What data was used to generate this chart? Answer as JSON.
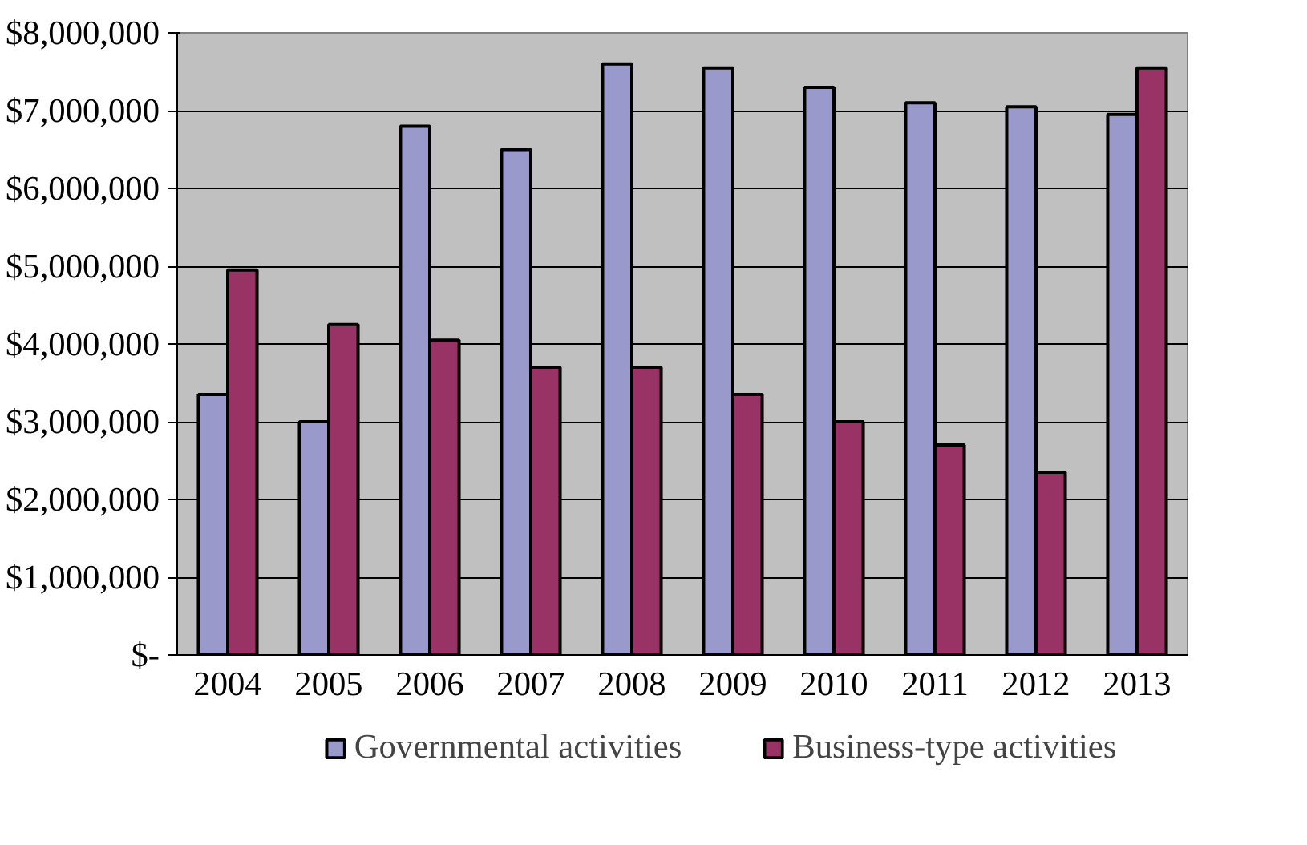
{
  "chart_data": {
    "type": "bar",
    "categories": [
      "2004",
      "2005",
      "2006",
      "2007",
      "2008",
      "2009",
      "2010",
      "2011",
      "2012",
      "2013"
    ],
    "series": [
      {
        "name": "Governmental activities",
        "color": "#9999cc",
        "values": [
          3350000,
          3000000,
          6800000,
          6500000,
          7600000,
          7550000,
          7300000,
          7100000,
          7050000,
          6950000
        ]
      },
      {
        "name": "Business-type activities",
        "color": "#993366",
        "values": [
          4950000,
          4250000,
          4050000,
          3700000,
          3700000,
          3350000,
          3000000,
          2700000,
          2350000,
          7550000
        ]
      }
    ],
    "ylim": [
      0,
      8000000
    ],
    "yticks": [
      {
        "value": 0,
        "label": "$-"
      },
      {
        "value": 1000000,
        "label": "$1,000,000"
      },
      {
        "value": 2000000,
        "label": "$2,000,000"
      },
      {
        "value": 3000000,
        "label": "$3,000,000"
      },
      {
        "value": 4000000,
        "label": "$4,000,000"
      },
      {
        "value": 5000000,
        "label": "$5,000,000"
      },
      {
        "value": 6000000,
        "label": "$6,000,000"
      },
      {
        "value": 7000000,
        "label": "$7,000,000"
      },
      {
        "value": 8000000,
        "label": "$8,000,000"
      }
    ],
    "grid": "y",
    "legend": "bottom"
  }
}
